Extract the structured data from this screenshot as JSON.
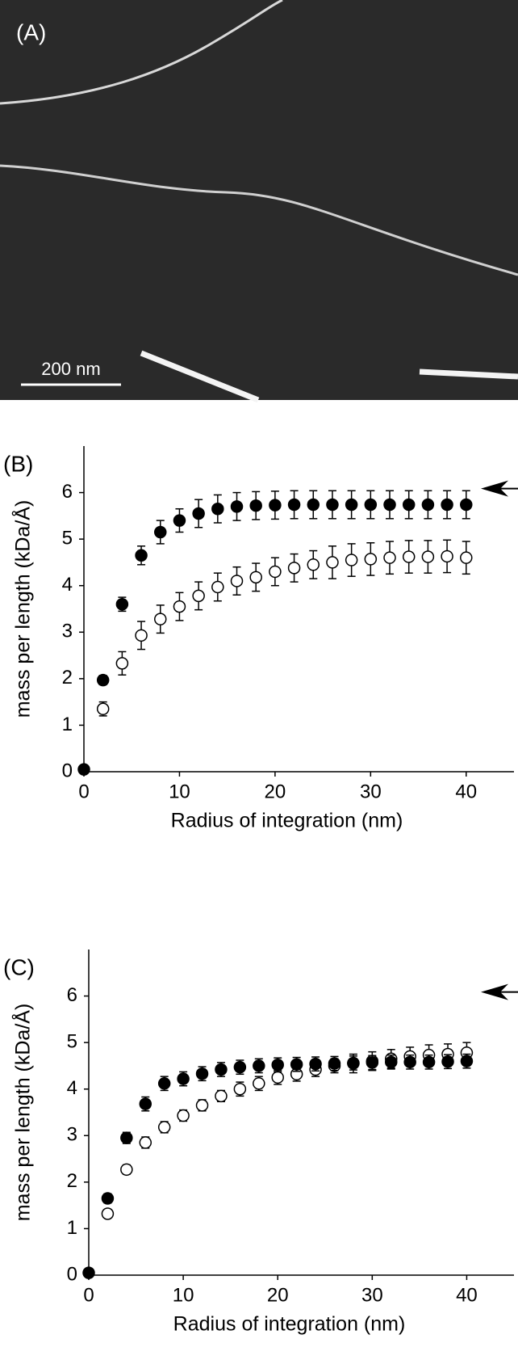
{
  "image": {
    "label": "(A)",
    "scale_bar": "200 nm"
  },
  "chart_data": [
    {
      "type": "scatter",
      "panel_label": "(B)",
      "xlabel": "Radius of integration (nm)",
      "ylabel": "mass per length (kDa/Å)",
      "x": [
        0,
        2,
        4,
        6,
        8,
        10,
        12,
        14,
        16,
        18,
        20,
        22,
        24,
        26,
        28,
        30,
        32,
        34,
        36,
        38,
        40
      ],
      "xlim": [
        0,
        45
      ],
      "xticks": [
        0,
        10,
        20,
        30,
        40
      ],
      "ylim": [
        0,
        7
      ],
      "yticks": [
        0,
        1,
        2,
        3,
        4,
        5,
        6
      ],
      "series": [
        {
          "color": "#000000",
          "values": [
            0.05,
            1.97,
            3.6,
            4.65,
            5.15,
            5.4,
            5.55,
            5.65,
            5.7,
            5.72,
            5.73,
            5.74,
            5.74,
            5.74,
            5.74,
            5.74,
            5.74,
            5.74,
            5.74,
            5.74,
            5.74
          ],
          "errors": [
            0.05,
            0.1,
            0.15,
            0.2,
            0.25,
            0.25,
            0.3,
            0.3,
            0.3,
            0.3,
            0.3,
            0.3,
            0.3,
            0.3,
            0.3,
            0.3,
            0.3,
            0.3,
            0.3,
            0.3,
            0.3
          ]
        },
        {
          "color": "#ffffff",
          "values": [
            null,
            1.35,
            2.33,
            2.93,
            3.28,
            3.55,
            3.78,
            3.97,
            4.1,
            4.18,
            4.3,
            4.38,
            4.45,
            4.5,
            4.55,
            4.57,
            4.6,
            4.62,
            4.62,
            4.63,
            4.6
          ],
          "errors": [
            null,
            0.15,
            0.25,
            0.3,
            0.3,
            0.3,
            0.3,
            0.3,
            0.3,
            0.3,
            0.3,
            0.3,
            0.3,
            0.35,
            0.35,
            0.35,
            0.35,
            0.35,
            0.35,
            0.35,
            0.35
          ]
        }
      ]
    },
    {
      "type": "scatter",
      "panel_label": "(C)",
      "xlabel": "Radius of integration (nm)",
      "ylabel": "mass per length (kDa/Å)",
      "x": [
        0,
        2,
        4,
        6,
        8,
        10,
        12,
        14,
        16,
        18,
        20,
        22,
        24,
        26,
        28,
        30,
        32,
        34,
        36,
        38,
        40
      ],
      "xlim": [
        0,
        45
      ],
      "xticks": [
        0,
        10,
        20,
        30,
        40
      ],
      "ylim": [
        0,
        7
      ],
      "yticks": [
        0,
        1,
        2,
        3,
        4,
        5,
        6
      ],
      "series": [
        {
          "color": "#000000",
          "values": [
            0.05,
            1.65,
            2.95,
            3.68,
            4.12,
            4.22,
            4.33,
            4.42,
            4.47,
            4.5,
            4.52,
            4.53,
            4.54,
            4.55,
            4.56,
            4.57,
            4.58,
            4.58,
            4.58,
            4.59,
            4.6
          ],
          "errors": [
            0.05,
            0.1,
            0.12,
            0.15,
            0.15,
            0.15,
            0.15,
            0.15,
            0.15,
            0.15,
            0.15,
            0.15,
            0.15,
            0.15,
            0.15,
            0.15,
            0.15,
            0.15,
            0.15,
            0.15,
            0.15
          ]
        },
        {
          "color": "#ffffff",
          "values": [
            null,
            1.32,
            2.27,
            2.85,
            3.18,
            3.43,
            3.65,
            3.85,
            4.0,
            4.12,
            4.25,
            4.32,
            4.42,
            4.5,
            4.55,
            4.6,
            4.65,
            4.7,
            4.73,
            4.75,
            4.78
          ],
          "errors": [
            null,
            0.08,
            0.1,
            0.12,
            0.12,
            0.12,
            0.12,
            0.12,
            0.15,
            0.15,
            0.15,
            0.15,
            0.15,
            0.15,
            0.2,
            0.2,
            0.2,
            0.2,
            0.22,
            0.22,
            0.22
          ]
        }
      ]
    }
  ]
}
